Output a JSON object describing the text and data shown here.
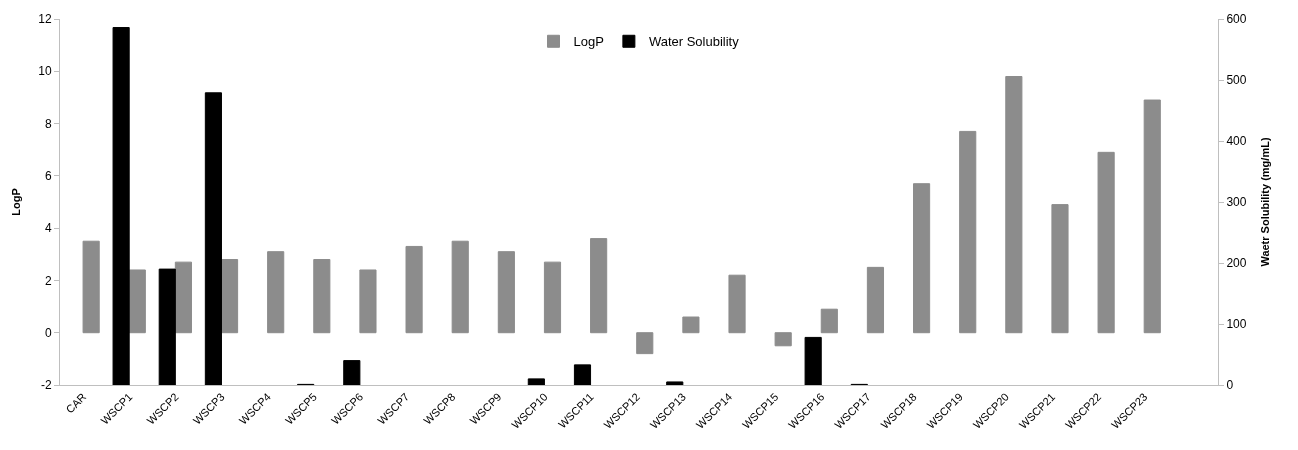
{
  "chart_data": {
    "type": "bar",
    "categories": [
      "CAR",
      "WSCP1",
      "WSCP2",
      "WSCP3",
      "WSCP4",
      "WSCP5",
      "WSCP6",
      "WSCP7",
      "WSCP8",
      "WSCP9",
      "WSCP10",
      "WSCP11",
      "WSCP12",
      "WSCP13",
      "WSCP14",
      "WSCP15",
      "WSCP16",
      "WSCP17",
      "WSCP18",
      "WSCP19",
      "WSCP20",
      "WSCP21",
      "WSCP22",
      "WSCP23"
    ],
    "series": [
      {
        "name": "LogP",
        "color": "#8c8c8c",
        "values": [
          3.5,
          2.4,
          2.7,
          2.8,
          3.1,
          2.8,
          2.4,
          3.3,
          3.5,
          3.1,
          2.7,
          3.6,
          -0.8,
          0.6,
          2.2,
          -0.5,
          0.9,
          2.5,
          5.7,
          7.7,
          9.8,
          4.9,
          6.9,
          8.9
        ]
      },
      {
        "name": "Water Solubility",
        "color": "#000000",
        "axis": "y2",
        "values": [
          null,
          586,
          190,
          479,
          null,
          1,
          40,
          null,
          null,
          null,
          10,
          33,
          null,
          5,
          null,
          null,
          78,
          1,
          null,
          null,
          null,
          null,
          null,
          null
        ]
      }
    ],
    "ylabel": "LogP",
    "y2label": "Waetr Solubility (mg/mL)",
    "ylim": [
      -2,
      12
    ],
    "yticks": [
      -2,
      0,
      2,
      4,
      6,
      8,
      10,
      12
    ],
    "y2lim": [
      0,
      600
    ],
    "y2ticks": [
      0,
      100,
      200,
      300,
      400,
      500,
      600
    ],
    "legend": "top"
  }
}
